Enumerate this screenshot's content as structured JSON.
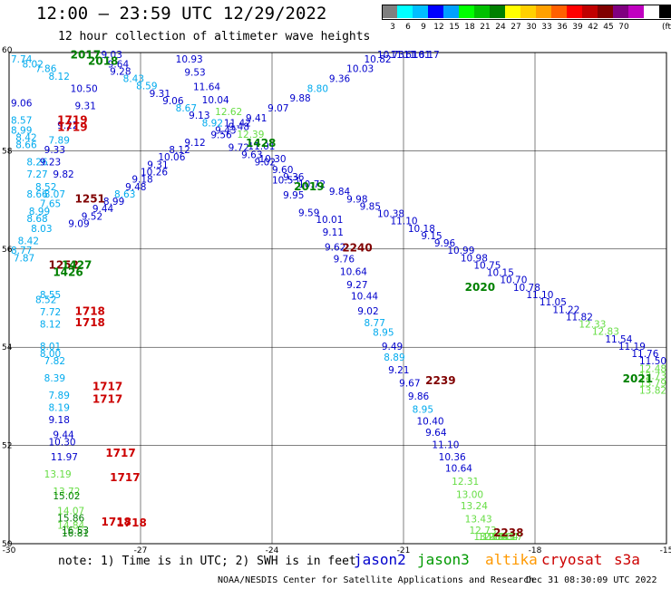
{
  "header": {
    "title": "12:00 — 23:59 UTC 12/29/2022",
    "subtitle": "12 hour collection of altimeter wave heights"
  },
  "colorbar": {
    "units": "(ft)",
    "swatches": [
      "#7f7f7f",
      "#00ffff",
      "#00bfff",
      "#0000ff",
      "#00a0ff",
      "#00ff00",
      "#00c000",
      "#008000",
      "#ffff00",
      "#ffd000",
      "#ffa000",
      "#ff6000",
      "#ff0000",
      "#c00000",
      "#800000",
      "#800080",
      "#c000c0",
      "#ffffff",
      "#000000"
    ],
    "labels": [
      "3",
      "6",
      "9",
      "12",
      "15",
      "18",
      "21",
      "24",
      "27",
      "30",
      "33",
      "36",
      "39",
      "42",
      "45",
      "70"
    ]
  },
  "axes": {
    "lon_labels": [
      "-30",
      "-27",
      "-24",
      "-21",
      "-18",
      "-15"
    ],
    "lat_labels": [
      "60",
      "58",
      "56",
      "54",
      "52",
      "50"
    ],
    "grid": true
  },
  "note": "note:  1) Time is in UTC;  2) SWH is in feet",
  "legend": [
    {
      "name": "jason2",
      "color": "#0000cc"
    },
    {
      "name": "jason3",
      "color": "#009900"
    },
    {
      "name": "altika",
      "color": "#ff9900"
    },
    {
      "name": "cryosat",
      "color": "#cc0000"
    },
    {
      "name": "s3a",
      "color": "#cc0000"
    }
  ],
  "credit": "NOAA/NESDIS Center for Satellite Applications and Research",
  "stamp": "Dec 31 08:30:09 UTC 2022",
  "time_labels": [
    {
      "text": "2017",
      "lon": -28.6,
      "lat": 59.88,
      "color": "#008000"
    },
    {
      "text": "2018",
      "lon": -28.2,
      "lat": 59.75,
      "color": "#008000"
    },
    {
      "text": "1719",
      "lon": -28.9,
      "lat": 58.55,
      "color": "#cc0000"
    },
    {
      "text": "1719",
      "lon": -28.9,
      "lat": 58.4,
      "color": "#cc0000"
    },
    {
      "text": "1428",
      "lon": -24.6,
      "lat": 58.08,
      "color": "#008000"
    },
    {
      "text": "2019",
      "lon": -23.5,
      "lat": 57.2,
      "color": "#008000"
    },
    {
      "text": "1251",
      "lon": -28.5,
      "lat": 56.95,
      "color": "#800000"
    },
    {
      "text": "2240",
      "lon": -22.4,
      "lat": 55.95,
      "color": "#800000"
    },
    {
      "text": "1252",
      "lon": -29.1,
      "lat": 55.6,
      "color": "#800000"
    },
    {
      "text": "1427",
      "lon": -28.8,
      "lat": 55.6,
      "color": "#008000"
    },
    {
      "text": "1426",
      "lon": -29.0,
      "lat": 55.45,
      "color": "#008000"
    },
    {
      "text": "2020",
      "lon": -19.6,
      "lat": 55.15,
      "color": "#008000"
    },
    {
      "text": "1718",
      "lon": -28.5,
      "lat": 54.66,
      "color": "#cc0000"
    },
    {
      "text": "1718",
      "lon": -28.5,
      "lat": 54.43,
      "color": "#cc0000"
    },
    {
      "text": "2239",
      "lon": -20.5,
      "lat": 53.25,
      "color": "#800000"
    },
    {
      "text": "2021",
      "lon": -16.0,
      "lat": 53.28,
      "color": "#008000"
    },
    {
      "text": "1717",
      "lon": -28.1,
      "lat": 53.13,
      "color": "#cc0000"
    },
    {
      "text": "1717",
      "lon": -28.1,
      "lat": 52.87,
      "color": "#cc0000"
    },
    {
      "text": "1717",
      "lon": -27.8,
      "lat": 51.77,
      "color": "#cc0000"
    },
    {
      "text": "1717",
      "lon": -27.7,
      "lat": 51.27,
      "color": "#cc0000"
    },
    {
      "text": "1718",
      "lon": -27.9,
      "lat": 50.37,
      "color": "#cc0000"
    },
    {
      "text": "1718",
      "lon": -27.55,
      "lat": 50.35,
      "color": "#cc0000"
    },
    {
      "text": "2238",
      "lon": -18.95,
      "lat": 50.15,
      "color": "#800000"
    }
  ],
  "observations": [
    {
      "v": "10.93",
      "lon": -26.2,
      "lat": 59.8,
      "c": "#0000cc"
    },
    {
      "v": "9.53",
      "lon": -26.0,
      "lat": 59.53,
      "c": "#0000cc"
    },
    {
      "v": "11.64",
      "lon": -25.8,
      "lat": 59.23,
      "c": "#0000cc"
    },
    {
      "v": "10.04",
      "lon": -25.6,
      "lat": 58.97,
      "c": "#0000cc"
    },
    {
      "v": "12.62",
      "lon": -25.3,
      "lat": 58.73,
      "c": "#66dd44"
    },
    {
      "v": "11.42",
      "lon": -25.1,
      "lat": 58.5,
      "c": "#0000cc"
    },
    {
      "v": "12.39",
      "lon": -24.8,
      "lat": 58.27,
      "c": "#66dd44"
    },
    {
      "v": "11.01",
      "lon": -24.55,
      "lat": 58.03,
      "c": "#0000cc"
    },
    {
      "v": "10.30",
      "lon": -24.3,
      "lat": 57.77,
      "c": "#0000cc"
    },
    {
      "v": "10.53",
      "lon": -24.0,
      "lat": 57.33,
      "c": "#0000cc"
    },
    {
      "v": "9.95",
      "lon": -23.75,
      "lat": 57.03,
      "c": "#0000cc"
    },
    {
      "v": "9.59",
      "lon": -23.4,
      "lat": 56.67,
      "c": "#0000cc"
    },
    {
      "v": "10.01",
      "lon": -23.0,
      "lat": 56.53,
      "c": "#0000cc"
    },
    {
      "v": "9.11",
      "lon": -22.85,
      "lat": 56.27,
      "c": "#0000cc"
    },
    {
      "v": "9.62",
      "lon": -22.8,
      "lat": 55.97,
      "c": "#0000cc"
    },
    {
      "v": "9.76",
      "lon": -22.6,
      "lat": 55.73,
      "c": "#0000cc"
    },
    {
      "v": "10.64",
      "lon": -22.45,
      "lat": 55.47,
      "c": "#0000cc"
    },
    {
      "v": "9.27",
      "lon": -22.3,
      "lat": 55.2,
      "c": "#0000cc"
    },
    {
      "v": "10.44",
      "lon": -22.2,
      "lat": 54.97,
      "c": "#0000cc"
    },
    {
      "v": "9.02",
      "lon": -22.05,
      "lat": 54.67,
      "c": "#0000cc"
    },
    {
      "v": "8.77",
      "lon": -21.9,
      "lat": 54.43,
      "c": "#00aaee"
    },
    {
      "v": "8.95",
      "lon": -21.7,
      "lat": 54.23,
      "c": "#00aaee"
    },
    {
      "v": "9.49",
      "lon": -21.5,
      "lat": 53.95,
      "c": "#0000cc"
    },
    {
      "v": "8.89",
      "lon": -21.45,
      "lat": 53.73,
      "c": "#00aaee"
    },
    {
      "v": "9.21",
      "lon": -21.35,
      "lat": 53.47,
      "c": "#0000cc"
    },
    {
      "v": "9.67",
      "lon": -21.1,
      "lat": 53.2,
      "c": "#0000cc"
    },
    {
      "v": "9.86",
      "lon": -20.9,
      "lat": 52.93,
      "c": "#0000cc"
    },
    {
      "v": "8.95",
      "lon": -20.8,
      "lat": 52.67,
      "c": "#00aaee"
    },
    {
      "v": "10.40",
      "lon": -20.7,
      "lat": 52.43,
      "c": "#0000cc"
    },
    {
      "v": "9.64",
      "lon": -20.5,
      "lat": 52.2,
      "c": "#0000cc"
    },
    {
      "v": "11.10",
      "lon": -20.35,
      "lat": 51.95,
      "c": "#0000cc"
    },
    {
      "v": "10.36",
      "lon": -20.2,
      "lat": 51.7,
      "c": "#0000cc"
    },
    {
      "v": "10.64",
      "lon": -20.05,
      "lat": 51.47,
      "c": "#0000cc"
    },
    {
      "v": "12.31",
      "lon": -19.9,
      "lat": 51.2,
      "c": "#66dd44"
    },
    {
      "v": "13.00",
      "lon": -19.8,
      "lat": 50.93,
      "c": "#66dd44"
    },
    {
      "v": "13.24",
      "lon": -19.7,
      "lat": 50.7,
      "c": "#66dd44"
    },
    {
      "v": "13.43",
      "lon": -19.6,
      "lat": 50.43,
      "c": "#66dd44"
    },
    {
      "v": "12.73",
      "lon": -19.5,
      "lat": 50.2,
      "c": "#66dd44"
    },
    {
      "v": "13.93",
      "lon": -19.4,
      "lat": 49.95,
      "c": "#66dd44"
    },
    {
      "v": "12.19",
      "lon": -19.3,
      "lat": 49.73,
      "c": "#66dd44"
    },
    {
      "v": "12.91",
      "lon": -19.2,
      "lat": 49.5,
      "c": "#66dd44"
    },
    {
      "v": "12.43",
      "lon": -19.1,
      "lat": 49.27,
      "c": "#66dd44"
    },
    {
      "v": "13.84",
      "lon": -19.0,
      "lat": 49.03,
      "c": "#66dd44"
    },
    {
      "v": "12.17",
      "lon": -18.9,
      "lat": 48.8,
      "c": "#66dd44"
    },
    {
      "v": "10.17",
      "lon": -20.8,
      "lat": 60.6,
      "c": "#0000cc"
    },
    {
      "v": "11.81",
      "lon": -21.0,
      "lat": 60.4,
      "c": "#0000cc"
    },
    {
      "v": "11.61",
      "lon": -21.3,
      "lat": 60.2,
      "c": "#0000cc"
    },
    {
      "v": "10.73",
      "lon": -21.6,
      "lat": 60.0,
      "c": "#0000cc"
    },
    {
      "v": "10.82",
      "lon": -21.9,
      "lat": 59.8,
      "c": "#0000cc"
    },
    {
      "v": "10.03",
      "lon": -22.3,
      "lat": 59.6,
      "c": "#0000cc"
    },
    {
      "v": "9.36",
      "lon": -22.7,
      "lat": 59.4,
      "c": "#0000cc"
    },
    {
      "v": "8.80",
      "lon": -23.2,
      "lat": 59.2,
      "c": "#00aaee"
    },
    {
      "v": "9.88",
      "lon": -23.6,
      "lat": 59.0,
      "c": "#0000cc"
    },
    {
      "v": "9.07",
      "lon": -24.1,
      "lat": 58.8,
      "c": "#0000cc"
    },
    {
      "v": "9.41",
      "lon": -24.6,
      "lat": 58.6,
      "c": "#0000cc"
    },
    {
      "v": "9.48",
      "lon": -25.0,
      "lat": 58.42,
      "c": "#0000cc"
    },
    {
      "v": "9.56",
      "lon": -25.4,
      "lat": 58.26,
      "c": "#0000cc"
    },
    {
      "v": "9.12",
      "lon": -26.0,
      "lat": 58.1,
      "c": "#0000cc"
    },
    {
      "v": "8.12",
      "lon": -26.35,
      "lat": 57.95,
      "c": "#0000cc"
    },
    {
      "v": "10.06",
      "lon": -26.6,
      "lat": 57.8,
      "c": "#0000cc"
    },
    {
      "v": "9.31",
      "lon": -26.85,
      "lat": 57.65,
      "c": "#0000cc"
    },
    {
      "v": "10.26",
      "lon": -27.0,
      "lat": 57.5,
      "c": "#0000cc"
    },
    {
      "v": "9.18",
      "lon": -27.2,
      "lat": 57.35,
      "c": "#0000cc"
    },
    {
      "v": "9.48",
      "lon": -27.35,
      "lat": 57.2,
      "c": "#0000cc"
    },
    {
      "v": "8.63",
      "lon": -27.6,
      "lat": 57.05,
      "c": "#00aaee"
    },
    {
      "v": "8.99",
      "lon": -27.85,
      "lat": 56.9,
      "c": "#0000cc"
    },
    {
      "v": "9.44",
      "lon": -28.1,
      "lat": 56.75,
      "c": "#0000cc"
    },
    {
      "v": "9.52",
      "lon": -28.35,
      "lat": 56.6,
      "c": "#0000cc"
    },
    {
      "v": "9.09",
      "lon": -28.65,
      "lat": 56.45,
      "c": "#0000cc"
    },
    {
      "v": "9.03",
      "lon": -27.9,
      "lat": 59.9,
      "c": "#0000cc"
    },
    {
      "v": "9.64",
      "lon": -27.75,
      "lat": 59.7,
      "c": "#0000cc"
    },
    {
      "v": "9.28",
      "lon": -27.7,
      "lat": 59.55,
      "c": "#0000cc"
    },
    {
      "v": "8.43",
      "lon": -27.4,
      "lat": 59.4,
      "c": "#00aaee"
    },
    {
      "v": "8.59",
      "lon": -27.1,
      "lat": 59.25,
      "c": "#00aaee"
    },
    {
      "v": "9.31",
      "lon": -26.8,
      "lat": 59.1,
      "c": "#0000cc"
    },
    {
      "v": "9.06",
      "lon": -26.5,
      "lat": 58.95,
      "c": "#0000cc"
    },
    {
      "v": "8.67",
      "lon": -26.2,
      "lat": 58.8,
      "c": "#00aaee"
    },
    {
      "v": "9.13",
      "lon": -25.9,
      "lat": 58.65,
      "c": "#0000cc"
    },
    {
      "v": "8.92",
      "lon": -25.6,
      "lat": 58.5,
      "c": "#00aaee"
    },
    {
      "v": "9.43",
      "lon": -25.3,
      "lat": 58.35,
      "c": "#0000cc"
    },
    {
      "v": "9.72",
      "lon": -25.0,
      "lat": 58.0,
      "c": "#0000cc"
    },
    {
      "v": "9.63",
      "lon": -24.7,
      "lat": 57.85,
      "c": "#0000cc"
    },
    {
      "v": "9.02",
      "lon": -24.4,
      "lat": 57.7,
      "c": "#0000cc"
    },
    {
      "v": "9.60",
      "lon": -24.0,
      "lat": 57.55,
      "c": "#0000cc"
    },
    {
      "v": "9.36",
      "lon": -23.75,
      "lat": 57.4,
      "c": "#0000cc"
    },
    {
      "v": "10.72",
      "lon": -23.4,
      "lat": 57.25,
      "c": "#0000cc"
    },
    {
      "v": "9.84",
      "lon": -22.7,
      "lat": 57.1,
      "c": "#0000cc"
    },
    {
      "v": "9.98",
      "lon": -22.3,
      "lat": 56.95,
      "c": "#0000cc"
    },
    {
      "v": "9.85",
      "lon": -22.0,
      "lat": 56.8,
      "c": "#0000cc"
    },
    {
      "v": "10.38",
      "lon": -21.6,
      "lat": 56.65,
      "c": "#0000cc"
    },
    {
      "v": "11.10",
      "lon": -21.3,
      "lat": 56.5,
      "c": "#0000cc"
    },
    {
      "v": "10.18",
      "lon": -20.9,
      "lat": 56.35,
      "c": "#0000cc"
    },
    {
      "v": "9.15",
      "lon": -20.6,
      "lat": 56.2,
      "c": "#0000cc"
    },
    {
      "v": "9.96",
      "lon": -20.3,
      "lat": 56.05,
      "c": "#0000cc"
    },
    {
      "v": "10.99",
      "lon": -20.0,
      "lat": 55.9,
      "c": "#0000cc"
    },
    {
      "v": "10.98",
      "lon": -19.7,
      "lat": 55.75,
      "c": "#0000cc"
    },
    {
      "v": "10.75",
      "lon": -19.4,
      "lat": 55.6,
      "c": "#0000cc"
    },
    {
      "v": "10.15",
      "lon": -19.1,
      "lat": 55.45,
      "c": "#0000cc"
    },
    {
      "v": "10.70",
      "lon": -18.8,
      "lat": 55.3,
      "c": "#0000cc"
    },
    {
      "v": "10.78",
      "lon": -18.5,
      "lat": 55.15,
      "c": "#0000cc"
    },
    {
      "v": "11.10",
      "lon": -18.2,
      "lat": 55.0,
      "c": "#0000cc"
    },
    {
      "v": "11.05",
      "lon": -17.9,
      "lat": 54.85,
      "c": "#0000cc"
    },
    {
      "v": "11.22",
      "lon": -17.6,
      "lat": 54.7,
      "c": "#0000cc"
    },
    {
      "v": "11.82",
      "lon": -17.3,
      "lat": 54.55,
      "c": "#0000cc"
    },
    {
      "v": "12.33",
      "lon": -17.0,
      "lat": 54.4,
      "c": "#66dd44"
    },
    {
      "v": "12.83",
      "lon": -16.7,
      "lat": 54.25,
      "c": "#66dd44"
    },
    {
      "v": "11.54",
      "lon": -16.4,
      "lat": 54.1,
      "c": "#0000cc"
    },
    {
      "v": "11.19",
      "lon": -16.1,
      "lat": 53.95,
      "c": "#0000cc"
    },
    {
      "v": "11.76",
      "lon": -15.8,
      "lat": 53.8,
      "c": "#0000cc"
    },
    {
      "v": "11.50",
      "lon": -15.5,
      "lat": 53.65,
      "c": "#0000cc"
    },
    {
      "v": "12.48",
      "lon": -15.2,
      "lat": 53.5,
      "c": "#66dd44"
    },
    {
      "v": "12.73",
      "lon": -14.9,
      "lat": 53.35,
      "c": "#66dd44"
    },
    {
      "v": "13.79",
      "lon": -14.6,
      "lat": 53.2,
      "c": "#66dd44"
    },
    {
      "v": "13.82",
      "lon": -14.3,
      "lat": 53.05,
      "c": "#66dd44"
    },
    {
      "v": "7.74",
      "lon": -30.0,
      "lat": 59.8,
      "c": "#00aaee"
    },
    {
      "v": "8.02",
      "lon": -29.7,
      "lat": 59.7,
      "c": "#00aaee"
    },
    {
      "v": "7.86",
      "lon": -29.4,
      "lat": 59.6,
      "c": "#00aaee"
    },
    {
      "v": "8.12",
      "lon": -29.1,
      "lat": 59.45,
      "c": "#00aaee"
    },
    {
      "v": "10.50",
      "lon": -28.6,
      "lat": 59.2,
      "c": "#0000cc"
    },
    {
      "v": "9.06",
      "lon": -30.0,
      "lat": 58.9,
      "c": "#0000cc"
    },
    {
      "v": "9.31",
      "lon": -28.5,
      "lat": 58.85,
      "c": "#0000cc"
    },
    {
      "v": "8.57",
      "lon": -30.0,
      "lat": 58.55,
      "c": "#00aaee"
    },
    {
      "v": "9.22",
      "lon": -28.9,
      "lat": 58.45,
      "c": "#0000cc"
    },
    {
      "v": "8.99",
      "lon": -30.0,
      "lat": 58.35,
      "c": "#00aaee"
    },
    {
      "v": "8.42",
      "lon": -29.85,
      "lat": 58.2,
      "c": "#00aaee"
    },
    {
      "v": "7.89",
      "lon": -29.1,
      "lat": 58.15,
      "c": "#00aaee"
    },
    {
      "v": "8.66",
      "lon": -29.85,
      "lat": 58.05,
      "c": "#00aaee"
    },
    {
      "v": "9.33",
      "lon": -29.2,
      "lat": 57.95,
      "c": "#0000cc"
    },
    {
      "v": "8.26",
      "lon": -29.6,
      "lat": 57.7,
      "c": "#00aaee"
    },
    {
      "v": "9.23",
      "lon": -29.3,
      "lat": 57.7,
      "c": "#0000cc"
    },
    {
      "v": "7.27",
      "lon": -29.6,
      "lat": 57.45,
      "c": "#00aaee"
    },
    {
      "v": "9.82",
      "lon": -29.0,
      "lat": 57.45,
      "c": "#0000cc"
    },
    {
      "v": "8.52",
      "lon": -29.4,
      "lat": 57.2,
      "c": "#00aaee"
    },
    {
      "v": "8.07",
      "lon": -29.2,
      "lat": 57.05,
      "c": "#00aaee"
    },
    {
      "v": "8.66",
      "lon": -29.6,
      "lat": 57.05,
      "c": "#00aaee"
    },
    {
      "v": "7.65",
      "lon": -29.3,
      "lat": 56.85,
      "c": "#00aaee"
    },
    {
      "v": "8.99",
      "lon": -29.55,
      "lat": 56.7,
      "c": "#00aaee"
    },
    {
      "v": "8.68",
      "lon": -29.6,
      "lat": 56.55,
      "c": "#00aaee"
    },
    {
      "v": "8.03",
      "lon": -29.5,
      "lat": 56.35,
      "c": "#00aaee"
    },
    {
      "v": "8.42",
      "lon": -29.8,
      "lat": 56.1,
      "c": "#00aaee"
    },
    {
      "v": "8.77",
      "lon": -30.0,
      "lat": 55.9,
      "c": "#00aaee"
    },
    {
      "v": "7.87",
      "lon": -29.9,
      "lat": 55.75,
      "c": "#00aaee"
    },
    {
      "v": "8.55",
      "lon": -29.3,
      "lat": 55.0,
      "c": "#00aaee"
    },
    {
      "v": "8.52",
      "lon": -29.4,
      "lat": 54.9,
      "c": "#00aaee"
    },
    {
      "v": "7.72",
      "lon": -29.3,
      "lat": 54.65,
      "c": "#00aaee"
    },
    {
      "v": "8.12",
      "lon": -29.3,
      "lat": 54.4,
      "c": "#00aaee"
    },
    {
      "v": "8.01",
      "lon": -29.3,
      "lat": 53.95,
      "c": "#00aaee"
    },
    {
      "v": "8.00",
      "lon": -29.3,
      "lat": 53.8,
      "c": "#00aaee"
    },
    {
      "v": "7.82",
      "lon": -29.2,
      "lat": 53.65,
      "c": "#00aaee"
    },
    {
      "v": "8.39",
      "lon": -29.2,
      "lat": 53.3,
      "c": "#00aaee"
    },
    {
      "v": "7.89",
      "lon": -29.1,
      "lat": 52.95,
      "c": "#00aaee"
    },
    {
      "v": "8.19",
      "lon": -29.1,
      "lat": 52.7,
      "c": "#00aaee"
    },
    {
      "v": "9.18",
      "lon": -29.1,
      "lat": 52.45,
      "c": "#0000cc"
    },
    {
      "v": "9.44",
      "lon": -29.0,
      "lat": 52.15,
      "c": "#0000cc"
    },
    {
      "v": "10.30",
      "lon": -29.1,
      "lat": 52.0,
      "c": "#0000cc"
    },
    {
      "v": "11.97",
      "lon": -29.05,
      "lat": 51.7,
      "c": "#0000cc"
    },
    {
      "v": "13.19",
      "lon": -29.2,
      "lat": 51.35,
      "c": "#66dd44"
    },
    {
      "v": "13.72",
      "lon": -29.0,
      "lat": 51.0,
      "c": "#66dd44"
    },
    {
      "v": "15.02",
      "lon": -29.0,
      "lat": 50.9,
      "c": "#008000"
    },
    {
      "v": "14.07",
      "lon": -28.9,
      "lat": 50.6,
      "c": "#66dd44"
    },
    {
      "v": "15.86",
      "lon": -28.9,
      "lat": 50.45,
      "c": "#008000"
    },
    {
      "v": "14.84",
      "lon": -28.9,
      "lat": 50.3,
      "c": "#66dd44"
    },
    {
      "v": "16.53",
      "lon": -28.8,
      "lat": 50.2,
      "c": "#008000"
    },
    {
      "v": "16.81",
      "lon": -28.8,
      "lat": 50.15,
      "c": "#008000"
    }
  ]
}
